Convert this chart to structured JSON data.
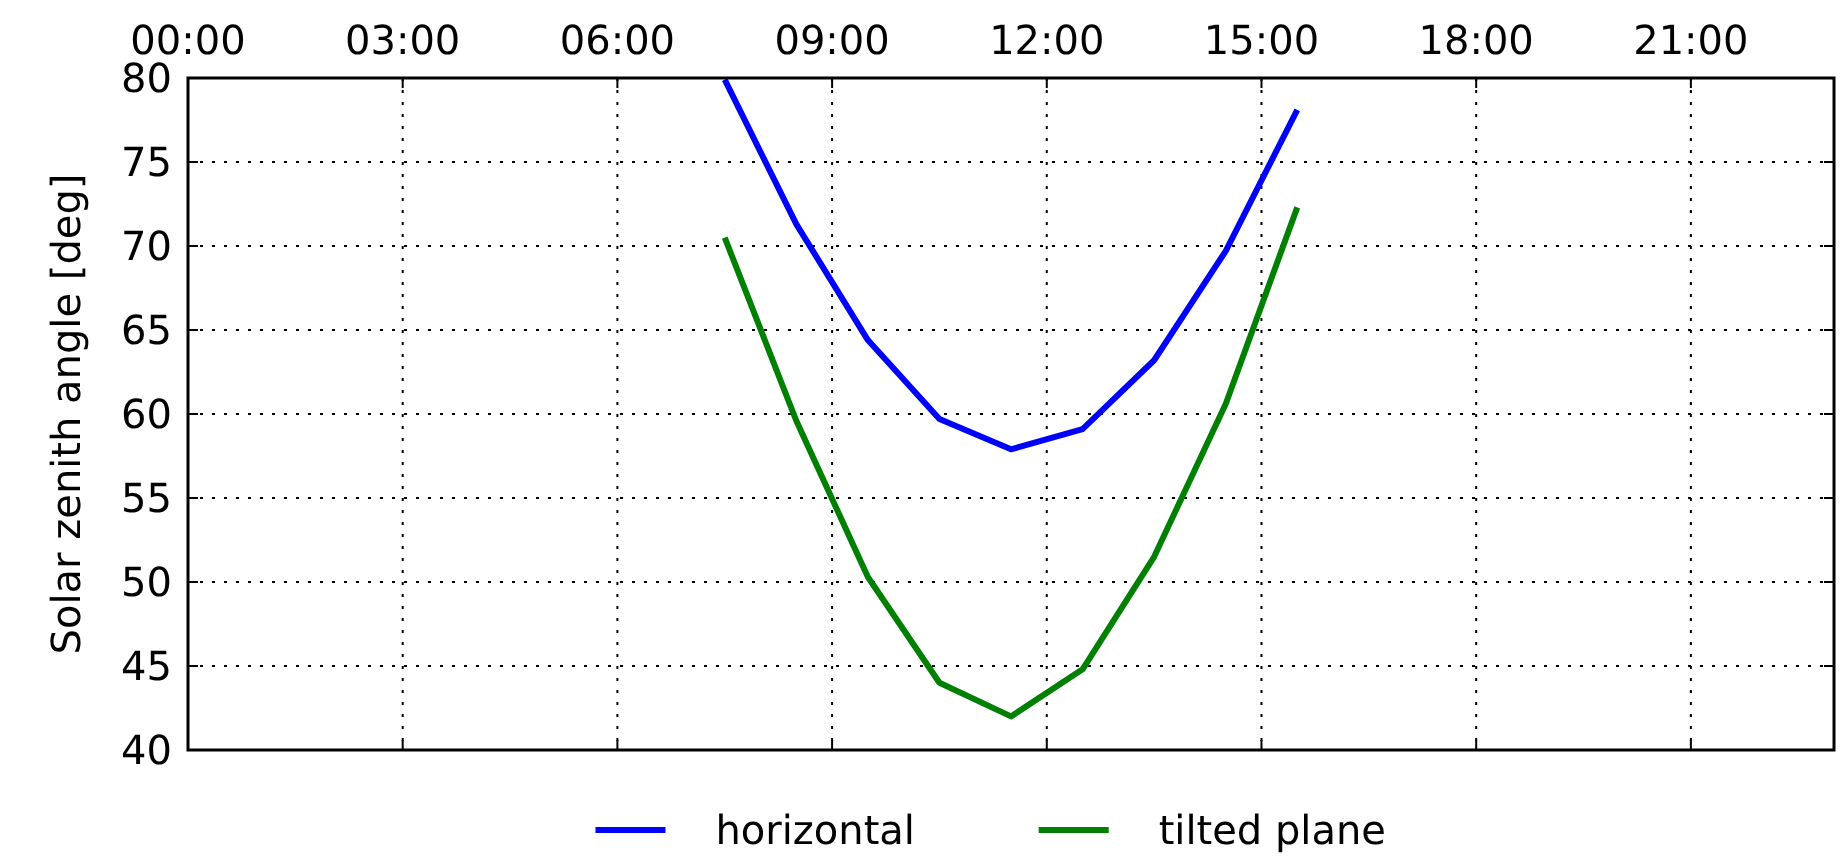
{
  "chart_data": {
    "type": "line",
    "ylabel": "Solar zenith angle [deg]",
    "x": [
      7.5,
      8.5,
      9.5,
      10.5,
      11.5,
      12.5,
      13.5,
      14.5,
      15.5
    ],
    "series": [
      {
        "name": "horizontal",
        "color": "#0000ff",
        "values": [
          79.9,
          71.3,
          64.4,
          59.7,
          57.9,
          59.1,
          63.2,
          69.7,
          78.1
        ]
      },
      {
        "name": "tilted plane",
        "color": "#008000",
        "values": [
          70.5,
          59.6,
          50.3,
          44.0,
          42.0,
          44.8,
          51.5,
          60.6,
          72.3
        ]
      }
    ],
    "xlim": [
      0,
      23
    ],
    "xticks": [
      {
        "value": 0,
        "label": "00:00"
      },
      {
        "value": 3,
        "label": "03:00"
      },
      {
        "value": 6,
        "label": "06:00"
      },
      {
        "value": 9,
        "label": "09:00"
      },
      {
        "value": 12,
        "label": "12:00"
      },
      {
        "value": 15,
        "label": "15:00"
      },
      {
        "value": 18,
        "label": "18:00"
      },
      {
        "value": 21,
        "label": "21:00"
      }
    ],
    "ylim": [
      40,
      80
    ],
    "yticks": [
      40,
      45,
      50,
      55,
      60,
      65,
      70,
      75,
      80
    ],
    "grid": true,
    "legend": "bottom",
    "line_style": "solid"
  }
}
